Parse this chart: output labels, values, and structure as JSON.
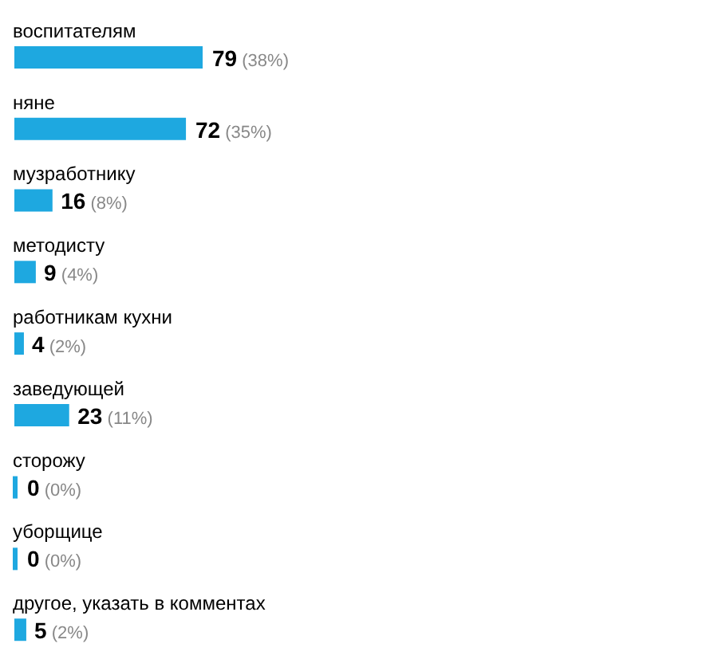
{
  "chart_data": {
    "type": "bar",
    "orientation": "horizontal",
    "categories": [
      "воспитателям",
      "няне",
      "музработнику",
      "методисту",
      "работникам кухни",
      "заведующей",
      "сторожу",
      "уборщице",
      "другое, указать в комментах"
    ],
    "values": [
      79,
      72,
      16,
      9,
      4,
      23,
      0,
      0,
      5
    ],
    "value_labels": [
      "79 (38%)",
      "72 (35%)",
      "16 (8%)",
      "9 (4%)",
      "4 (2%)",
      "23 (11%)",
      "0 (0%)",
      "0 (0%)",
      "5 (2%)"
    ],
    "color": "#1ea8e0",
    "grid": false,
    "legend": false
  }
}
